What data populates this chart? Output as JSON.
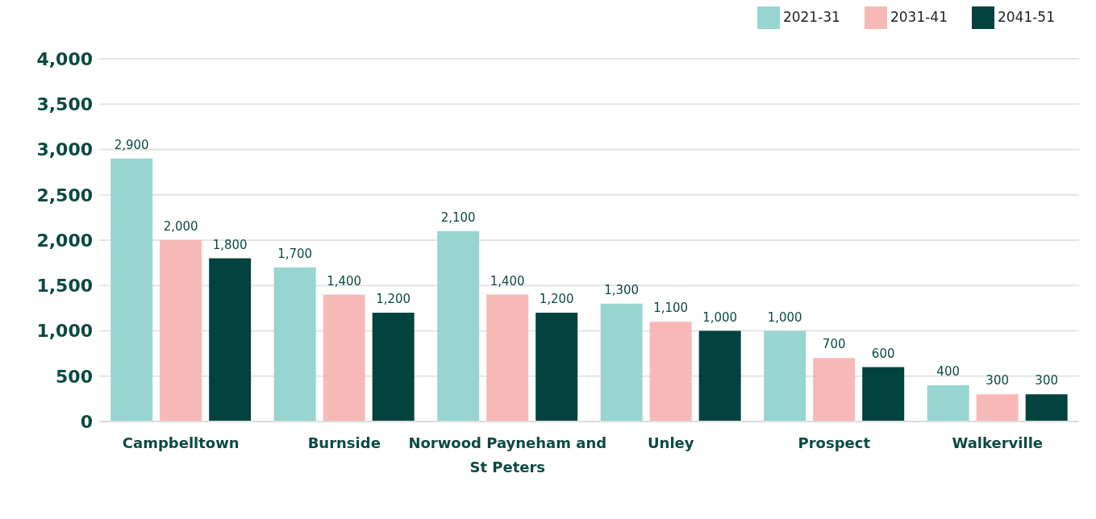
{
  "chart_data": {
    "type": "bar",
    "categories": [
      "Campbelltown",
      "Burnside",
      "Norwood Payneham and St Peters",
      "Unley",
      "Prospect",
      "Walkerville"
    ],
    "series": [
      {
        "name": "2021-31",
        "color": "#98d5d1",
        "values": [
          2900,
          1700,
          2100,
          1300,
          1000,
          400
        ],
        "value_labels": [
          "2,900",
          "1,700",
          "2,100",
          "1,300",
          "1,000",
          "400"
        ]
      },
      {
        "name": "2031-41",
        "color": "#f7b9b8",
        "values": [
          2000,
          1400,
          1400,
          1100,
          700,
          300
        ],
        "value_labels": [
          "2,000",
          "1,400",
          "1,400",
          "1,100",
          "700",
          "300"
        ]
      },
      {
        "name": "2041-51",
        "color": "#03433f",
        "values": [
          1800,
          1200,
          1200,
          1000,
          600,
          300
        ],
        "value_labels": [
          "1,800",
          "1,200",
          "1,200",
          "1,000",
          "600",
          "300"
        ]
      }
    ],
    "ylim": [
      0,
      4000
    ],
    "yticks": [
      0,
      500,
      {
        "value": 1000,
        "label": "1,000"
      },
      {
        "value": 1500,
        "label": "1,500"
      },
      {
        "value": 2000,
        "label": "2,000"
      },
      {
        "value": 2500,
        "label": "2,500"
      },
      {
        "value": 3000,
        "label": "3,000"
      },
      {
        "value": 3500,
        "label": "3,500"
      },
      {
        "value": 4000,
        "label": "4,000"
      }
    ],
    "grid": "y",
    "legend": "top right"
  }
}
